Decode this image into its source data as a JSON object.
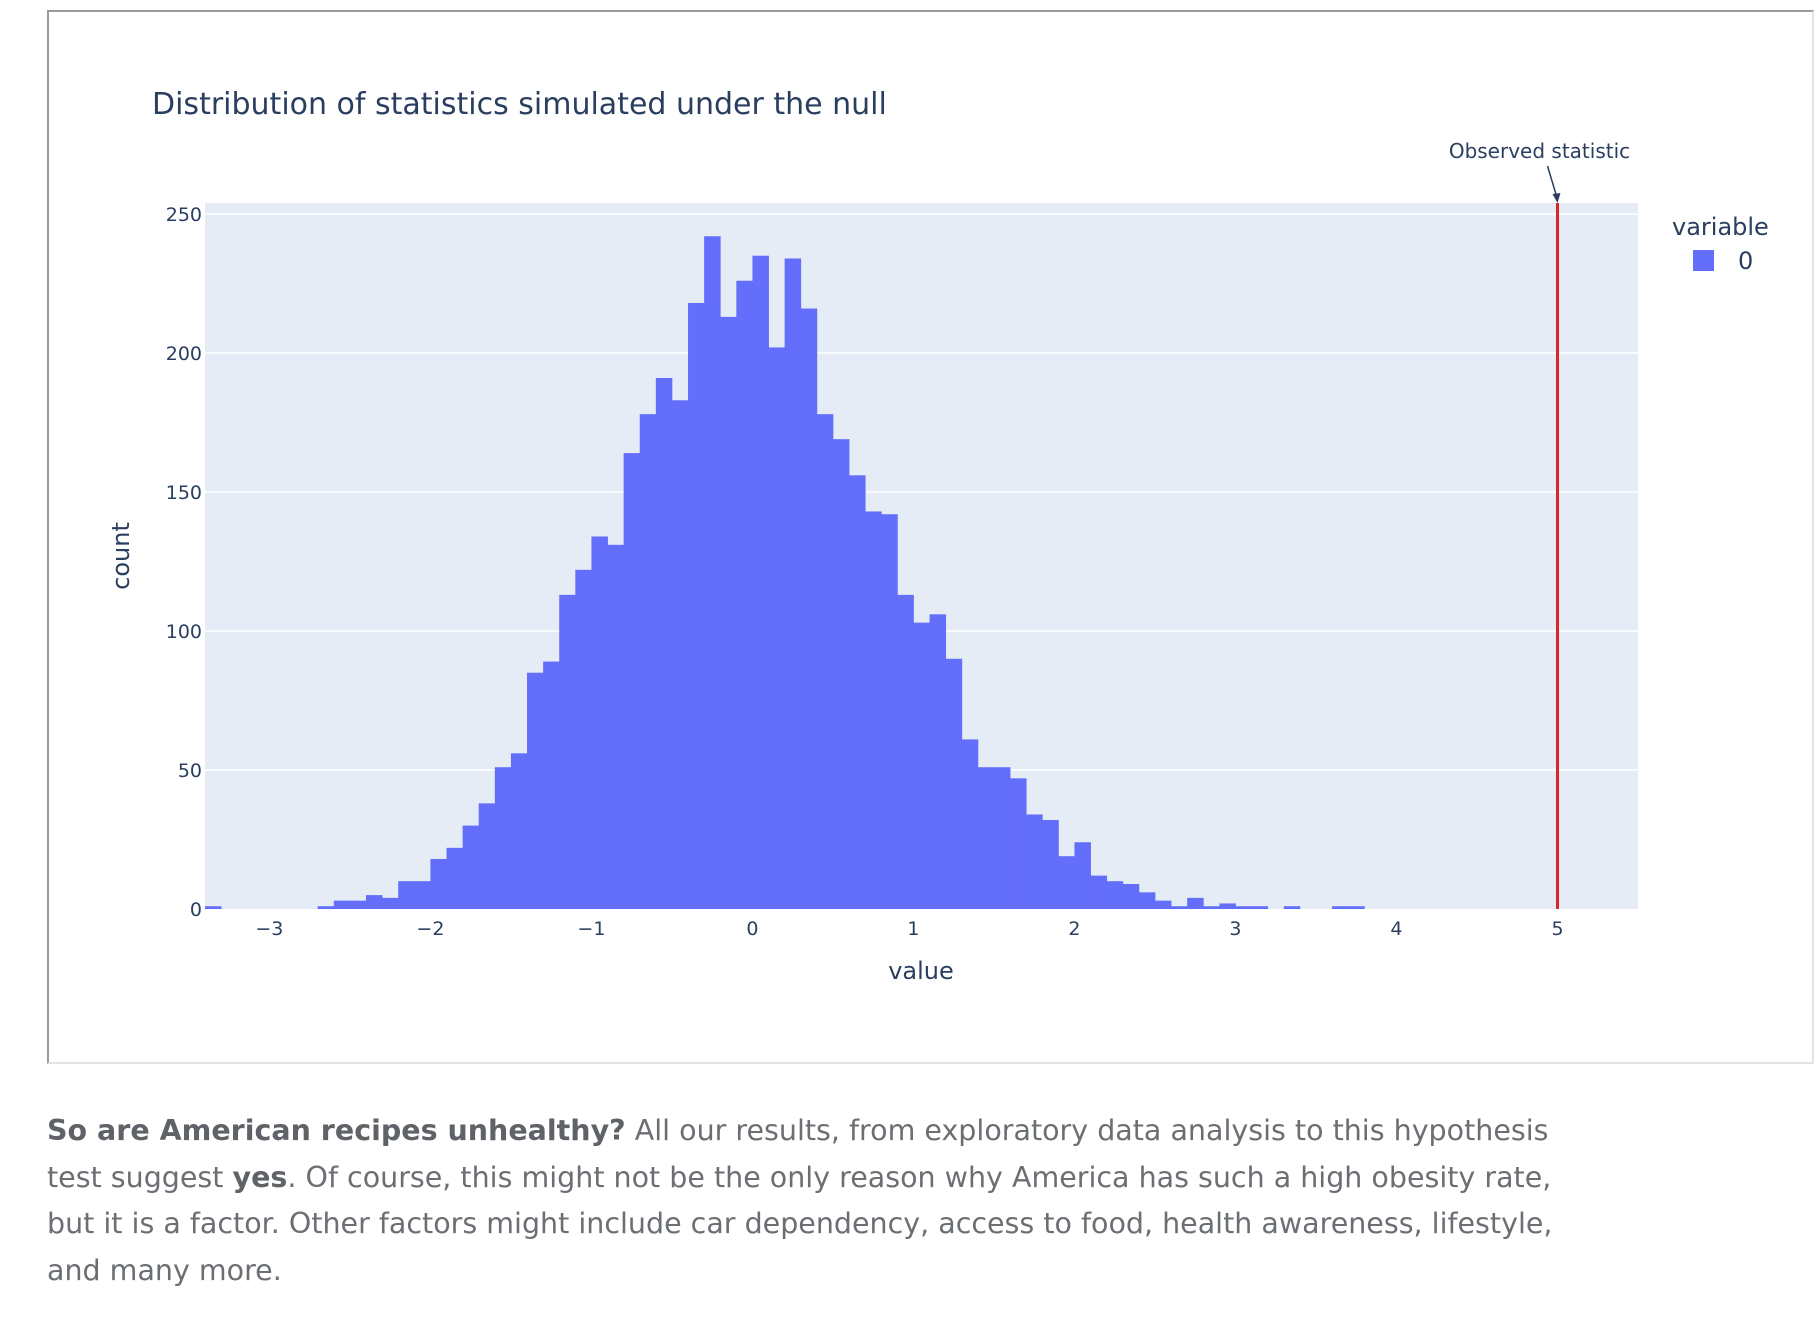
{
  "chart_data": {
    "type": "bar",
    "title": "Distribution of statistics simulated under the null",
    "xlabel": "value",
    "ylabel": "count",
    "xlim": [
      -3.4,
      5.5
    ],
    "ylim": [
      0,
      250
    ],
    "x_ticks": [
      -3,
      -2,
      -1,
      0,
      1,
      2,
      3,
      4,
      5
    ],
    "x_tick_labels": [
      "−3",
      "−2",
      "−1",
      "0",
      "1",
      "2",
      "3",
      "4",
      "5"
    ],
    "y_ticks": [
      0,
      50,
      100,
      150,
      200,
      250
    ],
    "y_tick_labels": [
      "0",
      "50",
      "100",
      "150",
      "200",
      "250"
    ],
    "grid": true,
    "legend_title": "variable",
    "legend_placement": "right",
    "bin_width": 0.1,
    "series": [
      {
        "name": "0",
        "color": "#636efa",
        "bins": [
          {
            "x": -3.4,
            "y": 1
          },
          {
            "x": -2.7,
            "y": 1
          },
          {
            "x": -2.6,
            "y": 3
          },
          {
            "x": -2.5,
            "y": 3
          },
          {
            "x": -2.4,
            "y": 5
          },
          {
            "x": -2.3,
            "y": 4
          },
          {
            "x": -2.2,
            "y": 10
          },
          {
            "x": -2.1,
            "y": 10
          },
          {
            "x": -2.0,
            "y": 18
          },
          {
            "x": -1.9,
            "y": 22
          },
          {
            "x": -1.8,
            "y": 30
          },
          {
            "x": -1.7,
            "y": 38
          },
          {
            "x": -1.6,
            "y": 51
          },
          {
            "x": -1.5,
            "y": 56
          },
          {
            "x": -1.4,
            "y": 85
          },
          {
            "x": -1.3,
            "y": 89
          },
          {
            "x": -1.2,
            "y": 113
          },
          {
            "x": -1.1,
            "y": 122
          },
          {
            "x": -1.0,
            "y": 134
          },
          {
            "x": -0.9,
            "y": 131
          },
          {
            "x": -0.8,
            "y": 164
          },
          {
            "x": -0.7,
            "y": 178
          },
          {
            "x": -0.6,
            "y": 191
          },
          {
            "x": -0.5,
            "y": 183
          },
          {
            "x": -0.4,
            "y": 218
          },
          {
            "x": -0.3,
            "y": 242
          },
          {
            "x": -0.2,
            "y": 213
          },
          {
            "x": -0.1,
            "y": 226
          },
          {
            "x": 0.0,
            "y": 235
          },
          {
            "x": 0.1,
            "y": 202
          },
          {
            "x": 0.2,
            "y": 234
          },
          {
            "x": 0.3,
            "y": 216
          },
          {
            "x": 0.4,
            "y": 178
          },
          {
            "x": 0.5,
            "y": 169
          },
          {
            "x": 0.6,
            "y": 156
          },
          {
            "x": 0.7,
            "y": 143
          },
          {
            "x": 0.8,
            "y": 142
          },
          {
            "x": 0.9,
            "y": 113
          },
          {
            "x": 1.0,
            "y": 103
          },
          {
            "x": 1.1,
            "y": 106
          },
          {
            "x": 1.2,
            "y": 90
          },
          {
            "x": 1.3,
            "y": 61
          },
          {
            "x": 1.4,
            "y": 51
          },
          {
            "x": 1.5,
            "y": 51
          },
          {
            "x": 1.6,
            "y": 47
          },
          {
            "x": 1.7,
            "y": 34
          },
          {
            "x": 1.8,
            "y": 32
          },
          {
            "x": 1.9,
            "y": 19
          },
          {
            "x": 2.0,
            "y": 24
          },
          {
            "x": 2.1,
            "y": 12
          },
          {
            "x": 2.2,
            "y": 10
          },
          {
            "x": 2.3,
            "y": 9
          },
          {
            "x": 2.4,
            "y": 6
          },
          {
            "x": 2.5,
            "y": 3
          },
          {
            "x": 2.6,
            "y": 1
          },
          {
            "x": 2.7,
            "y": 4
          },
          {
            "x": 2.8,
            "y": 1
          },
          {
            "x": 2.9,
            "y": 2
          },
          {
            "x": 3.0,
            "y": 1
          },
          {
            "x": 3.1,
            "y": 1
          },
          {
            "x": 3.3,
            "y": 1
          },
          {
            "x": 3.6,
            "y": 1
          },
          {
            "x": 3.7,
            "y": 1
          }
        ]
      }
    ],
    "annotation": {
      "text": "Observed statistic",
      "x": 5,
      "line_color": "#d62728"
    }
  },
  "paragraph": {
    "bold_question": "So are American recipes unhealthy?",
    "text_1": " All our results, from exploratory data analysis to this hypothesis test suggest ",
    "bold_yes": "yes",
    "text_2": ". Of course, this might not be the only reason why America has such a high obesity rate, but it is a factor. Other factors might include car dependency, access to food, health awareness, lifestyle, and many more."
  }
}
